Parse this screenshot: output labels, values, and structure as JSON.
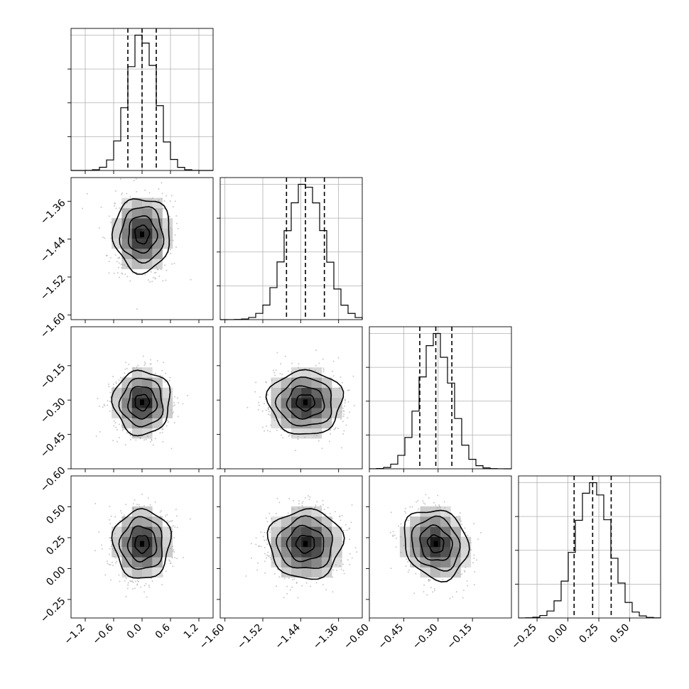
{
  "chart_data": {
    "type": "corner",
    "title": "",
    "parameters": 4,
    "params": [
      {
        "index": 0,
        "mean": 0.0,
        "sd": 0.3,
        "range": [
          -1.5,
          1.5
        ],
        "ticks": [
          "−1.2",
          "−0.6",
          "0.0",
          "0.6",
          "1.2"
        ],
        "tick_values": [
          -1.2,
          -0.6,
          0.0,
          0.6,
          1.2
        ],
        "quantiles": [
          -0.3,
          0.0,
          0.3
        ]
      },
      {
        "index": 1,
        "mean": -1.43,
        "sd": 0.039,
        "range": [
          -1.61,
          -1.31
        ],
        "ticks": [
          "−1.60",
          "−1.52",
          "−1.44",
          "−1.36"
        ],
        "tick_values": [
          -1.6,
          -1.52,
          -1.44,
          -1.36
        ],
        "quantiles": [
          -1.47,
          -1.43,
          -1.39
        ]
      },
      {
        "index": 2,
        "mean": -0.31,
        "sd": 0.07,
        "range": [
          -0.6,
          0.02
        ],
        "ticks": [
          "−0.60",
          "−0.45",
          "−0.30",
          "−0.15"
        ],
        "tick_values": [
          -0.6,
          -0.45,
          -0.3,
          -0.15
        ],
        "quantiles": [
          -0.38,
          -0.31,
          -0.24
        ]
      },
      {
        "index": 3,
        "mean": 0.2,
        "sd": 0.14,
        "range": [
          -0.4,
          0.75
        ],
        "ticks": [
          "−0.25",
          "0.00",
          "0.25",
          "0.50"
        ],
        "tick_values": [
          -0.25,
          0.0,
          0.25,
          0.5
        ],
        "quantiles": [
          0.05,
          0.2,
          0.35
        ]
      }
    ],
    "hist_bins": 20,
    "grid": true,
    "diagonal": "histogram with 16th/50th/84th percentile dashed lines",
    "off_diagonal": "2D density (grey squares) with black contours and grey scatter points"
  },
  "colors": {
    "grid": "#b0b0b0",
    "points": "#9a9a9a",
    "contour": "#000000",
    "density_dark": "#222222",
    "density_light": "#f4f4f4"
  }
}
